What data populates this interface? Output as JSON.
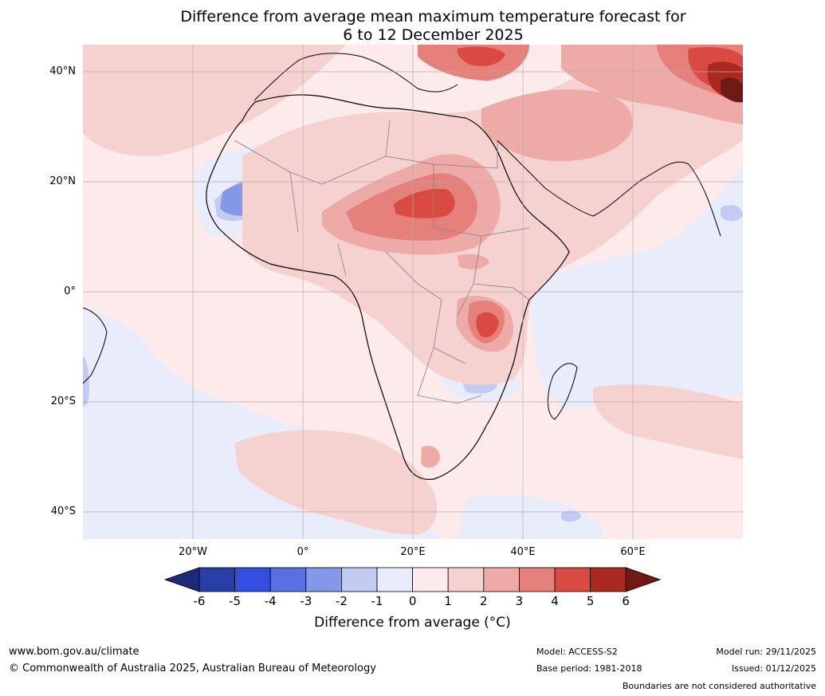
{
  "title": {
    "line1": "Difference from average mean maximum temperature forecast for",
    "line2": "6 to 12 December 2025"
  },
  "axes": {
    "lat_labels": [
      "40°N",
      "20°N",
      "0°",
      "20°S",
      "40°S"
    ],
    "lon_labels": [
      "20°W",
      "0°",
      "20°E",
      "40°E",
      "60°E"
    ]
  },
  "legend": {
    "ticks": [
      "-6",
      "-5",
      "-4",
      "-3",
      "-2",
      "-1",
      "0",
      "1",
      "2",
      "3",
      "4",
      "5",
      "6"
    ],
    "colors": [
      "#1c2a78",
      "#283ea8",
      "#344ee0",
      "#5870e4",
      "#8498e8",
      "#c2cbf2",
      "#e8ecfb",
      "#fcebea",
      "#f5d2d0",
      "#eeaaa7",
      "#e5807b",
      "#d94a42",
      "#aa2a22",
      "#701a14"
    ],
    "title": "Difference from average (°C)"
  },
  "footer": {
    "url": "www.bom.gov.au/climate",
    "copyright": "© Commonwealth of Australia 2025, Australian Bureau of Meteorology",
    "model": "Model: ACCESS-S2",
    "base_period": "Base period: 1981-2018",
    "model_run": "Model run: 29/11/2025",
    "issued": "Issued: 01/12/2025",
    "disclaimer": "Boundaries are not considered authoritative"
  }
}
